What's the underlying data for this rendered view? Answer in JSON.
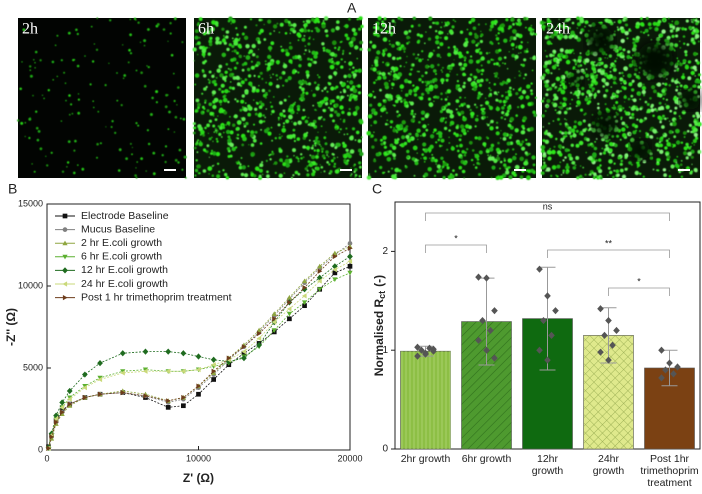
{
  "panel_labels": [
    "A",
    "B",
    "C"
  ],
  "image_labels": [
    "2h",
    "6h",
    "12h",
    "24h"
  ],
  "chart_data": [
    {
      "type": "line",
      "xlabel": "Z' (Ω)",
      "ylabel": "-Z'' (Ω)",
      "xlim": [
        0,
        20000
      ],
      "xticks": [
        0,
        10000,
        20000
      ],
      "ylim": [
        0,
        15000
      ],
      "yticks": [
        0,
        5000,
        10000,
        15000
      ],
      "legend": "upper left",
      "series": [
        {
          "name": "Electrode Baseline",
          "color": "#111111",
          "marker": "square",
          "x": [
            100,
            300,
            600,
            1000,
            1500,
            2500,
            3500,
            5000,
            6500,
            8000,
            9000,
            10000,
            11000,
            12000,
            13000,
            14000,
            15000,
            16000,
            17000,
            18000,
            19000,
            20000
          ],
          "values": [
            200,
            900,
            1800,
            2400,
            2800,
            3200,
            3400,
            3500,
            3200,
            2600,
            2700,
            3400,
            4300,
            5200,
            5900,
            6500,
            7200,
            8000,
            8800,
            9800,
            10800,
            11200
          ]
        },
        {
          "name": "Mucus Baseline",
          "color": "#808080",
          "marker": "circle",
          "x": [
            100,
            300,
            600,
            1000,
            1500,
            2500,
            3500,
            5000,
            6500,
            8000,
            9000,
            10000,
            11000,
            12000,
            13000,
            14000,
            15000,
            16000,
            17000,
            18000,
            19000,
            20000
          ],
          "values": [
            150,
            800,
            1700,
            2300,
            2800,
            3200,
            3400,
            3500,
            3300,
            2900,
            3100,
            3800,
            4600,
            5500,
            6300,
            7200,
            8200,
            9200,
            10200,
            11100,
            11900,
            12600
          ]
        },
        {
          "name": "2 hr E.coli growth",
          "color": "#8fa640",
          "marker": "triangle-up",
          "x": [
            100,
            300,
            600,
            1000,
            1500,
            2500,
            3500,
            5000,
            6500,
            8000,
            9000,
            10000,
            11000,
            12000,
            13000,
            14000,
            15000,
            16000,
            17000,
            18000,
            19000,
            20000
          ],
          "values": [
            100,
            700,
            1600,
            2200,
            2700,
            3200,
            3400,
            3600,
            3400,
            3000,
            3200,
            3900,
            4700,
            5600,
            6400,
            7300,
            8300,
            9300,
            10300,
            11200,
            12000,
            12400
          ]
        },
        {
          "name": "6 hr E.coli growth",
          "color": "#5cb030",
          "marker": "triangle-down",
          "x": [
            100,
            300,
            600,
            1000,
            1500,
            2500,
            3500,
            5000,
            6500,
            8000,
            9000,
            10000,
            11000,
            12000,
            13000,
            14000,
            15000,
            16000,
            17000,
            18000,
            19000,
            20000
          ],
          "values": [
            100,
            900,
            1900,
            2600,
            3200,
            3900,
            4400,
            4800,
            4900,
            4800,
            4800,
            4900,
            5100,
            5300,
            5700,
            6300,
            7300,
            8300,
            9000,
            9800,
            10400,
            10800
          ]
        },
        {
          "name": "12 hr E.coli growth",
          "color": "#1f6b1f",
          "marker": "diamond",
          "x": [
            100,
            300,
            600,
            1000,
            1500,
            2500,
            3500,
            5000,
            6500,
            8000,
            9000,
            10000,
            11000,
            12000,
            13000,
            14000,
            15000,
            16000,
            17000,
            18000,
            19000,
            20000
          ],
          "values": [
            150,
            1000,
            2100,
            2900,
            3600,
            4600,
            5300,
            5900,
            6000,
            6000,
            5900,
            5700,
            5500,
            5400,
            5600,
            6400,
            7800,
            9000,
            9800,
            10500,
            11200,
            11800
          ]
        },
        {
          "name": "24 hr E.coli growth",
          "color": "#cad97a",
          "marker": "triangle-left",
          "x": [
            100,
            300,
            600,
            1000,
            1500,
            2500,
            3500,
            5000,
            6500,
            8000,
            9000,
            10000,
            11000,
            12000,
            13000,
            14000,
            15000,
            16000,
            17000,
            18000,
            19000,
            20000
          ],
          "values": [
            120,
            900,
            1900,
            2600,
            3100,
            3800,
            4300,
            4700,
            4800,
            4800,
            4800,
            4900,
            5200,
            5500,
            6000,
            6800,
            7800,
            8600,
            9400,
            10300,
            11000,
            11500
          ]
        },
        {
          "name": "Post 1 hr trimethoprim treatment",
          "color": "#6e3d1c",
          "marker": "triangle-right",
          "x": [
            100,
            300,
            600,
            1000,
            1500,
            2500,
            3500,
            5000,
            6500,
            8000,
            9000,
            10000,
            11000,
            12000,
            13000,
            14000,
            15000,
            16000,
            17000,
            18000,
            19000,
            20000
          ],
          "values": [
            100,
            800,
            1700,
            2300,
            2800,
            3200,
            3400,
            3500,
            3300,
            3000,
            3200,
            3900,
            4800,
            5600,
            6300,
            7100,
            8000,
            9000,
            9900,
            10900,
            11800,
            12300
          ]
        }
      ]
    },
    {
      "type": "bar",
      "ylabel": "Normalised R",
      "ylabel_sub": "ct",
      "ylabel_unit": "(-)",
      "categories": [
        "2hr growth",
        "6hr growth",
        "12hr\ngrowth",
        "24hr\ngrowth",
        "Post 1hr\ntrimethoprim\ntreatment"
      ],
      "values": [
        0.99,
        1.29,
        1.32,
        1.15,
        0.82
      ],
      "errors": [
        0.05,
        0.44,
        0.52,
        0.28,
        0.18
      ],
      "colors": [
        "#8dbf45",
        "#4e9a2f",
        "#0f6a10",
        "#dfe98c",
        "#7b4113"
      ],
      "hatches": [
        "vertical",
        "diagonal",
        "none",
        "cross",
        "none"
      ],
      "points": [
        [
          0.94,
          0.97,
          0.99,
          1.0,
          1.02,
          1.03,
          0.96,
          1.01
        ],
        [
          1.74,
          1.73,
          1.4,
          1.3,
          1.2,
          1.1,
          1.0,
          0.92
        ],
        [
          1.82,
          1.55,
          1.4,
          1.3,
          1.15,
          1.0,
          0.9
        ],
        [
          1.42,
          1.3,
          1.2,
          1.15,
          1.05,
          0.98,
          0.9
        ],
        [
          1.0,
          0.87,
          0.83,
          0.8,
          0.76,
          0.72
        ]
      ],
      "significance": [
        {
          "from": 0,
          "to": 1,
          "label": "*"
        },
        {
          "from": 0,
          "to": 4,
          "label": "ns"
        },
        {
          "from": 2,
          "to": 4,
          "label": "**"
        },
        {
          "from": 3,
          "to": 4,
          "label": "*"
        }
      ],
      "ylim": [
        0,
        2.5
      ],
      "yticks": [
        0,
        1,
        2
      ]
    }
  ]
}
